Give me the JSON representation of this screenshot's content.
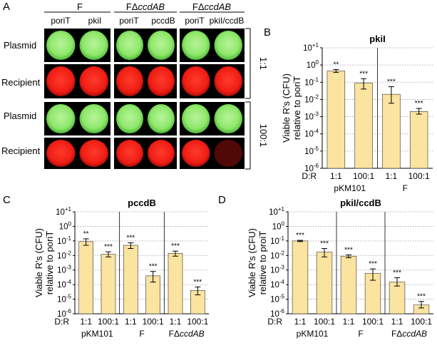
{
  "panel_letters": {
    "a": "A",
    "b": "B",
    "c": "C",
    "d": "D"
  },
  "panel_a": {
    "groups": [
      {
        "label": "F",
        "italic": ""
      },
      {
        "label": "FΔ",
        "italic": "ccdAB"
      },
      {
        "label": "FΔ",
        "italic": "ccdAB"
      }
    ],
    "columns": [
      "poriT",
      "pkiI",
      "poriT",
      "pccdB",
      "poriT",
      "pkiI/ccdB"
    ],
    "rows": [
      "Plasmid",
      "Recipient",
      "Plasmid",
      "Recipient"
    ],
    "ratios": [
      "1:1",
      "100:1"
    ],
    "colors": {
      "plasmid": "#8fe86a",
      "recipient": "#ef1d14",
      "tile_bg": "#000000"
    }
  },
  "y_axis": {
    "label_line1": "Viable R's (CFU)",
    "ticks": [
      {
        "base": "10",
        "exp": "+1"
      },
      {
        "base": "10",
        "exp": "0"
      },
      {
        "base": "10",
        "exp": "-1"
      },
      {
        "base": "10",
        "exp": "-2"
      },
      {
        "base": "10",
        "exp": "-3"
      },
      {
        "base": "10",
        "exp": "-4"
      },
      {
        "base": "10",
        "exp": "-5"
      },
      {
        "base": "10",
        "exp": "-6"
      }
    ]
  },
  "dr_label": "D:R",
  "chart_data": [
    {
      "panel": "B",
      "type": "bar",
      "title": "pkiI",
      "ylabel": "Viable R's (CFU) relative to poriT",
      "yscale": "log",
      "ylim_exp": [
        -6,
        1
      ],
      "grid": true,
      "bar_color": "#fbe3a0",
      "categories": [
        "1:1",
        "100:1",
        "1:1",
        "100:1"
      ],
      "groups": [
        {
          "name": "pKM101"
        },
        {
          "name": "F"
        }
      ],
      "values": [
        0.45,
        0.09,
        0.02,
        0.002
      ],
      "errors_low": [
        0.37,
        0.04,
        0.006,
        0.0014
      ],
      "errors_high": [
        0.55,
        0.16,
        0.055,
        0.003
      ],
      "significance": [
        "**",
        "***",
        "***",
        "***"
      ]
    },
    {
      "panel": "C",
      "type": "bar",
      "title": "pccdB",
      "ylabel": "Viable R's (CFU) relative to poriT",
      "yscale": "log",
      "ylim_exp": [
        -6,
        1
      ],
      "grid": true,
      "bar_color": "#fbe3a0",
      "categories": [
        "1:1",
        "100:1",
        "1:1",
        "100:1",
        "1:1",
        "100:1"
      ],
      "groups": [
        {
          "name": "pKM101"
        },
        {
          "name": "F"
        },
        {
          "name": "FΔ",
          "italic": "ccdAB"
        }
      ],
      "values": [
        0.09,
        0.012,
        0.05,
        0.0004,
        0.014,
        4e-05
      ],
      "errors_low": [
        0.05,
        0.008,
        0.03,
        0.00015,
        0.009,
        2e-05
      ],
      "errors_high": [
        0.14,
        0.018,
        0.075,
        0.0008,
        0.02,
        7e-05
      ],
      "significance": [
        "**",
        "***",
        "***",
        "***",
        "***",
        "***"
      ]
    },
    {
      "panel": "D",
      "type": "bar",
      "title": "pkiI/ccdB",
      "ylabel": "Viable R's (CFU) relative to proiT",
      "yscale": "log",
      "ylim_exp": [
        -6,
        1
      ],
      "grid": true,
      "bar_color": "#fbe3a0",
      "categories": [
        "1:1",
        "100:1",
        "1:1",
        "100:1",
        "1:1",
        "100:1"
      ],
      "groups": [
        {
          "name": "pKM101"
        },
        {
          "name": "F"
        },
        {
          "name": "FΔ",
          "italic": "ccdAB"
        }
      ],
      "values": [
        0.1,
        0.017,
        0.009,
        0.0006,
        0.00015,
        4e-06
      ],
      "errors_low": [
        0.09,
        0.008,
        0.007,
        0.0002,
        8e-05,
        2.5e-06
      ],
      "errors_high": [
        0.11,
        0.03,
        0.011,
        0.0012,
        0.0003,
        7e-06
      ],
      "significance": [
        "***",
        "***",
        "***",
        "***",
        "***",
        "***"
      ]
    }
  ]
}
